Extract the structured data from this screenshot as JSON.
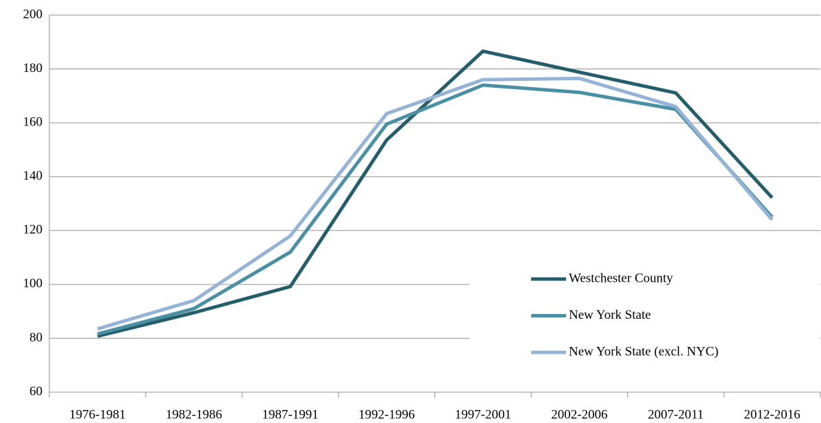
{
  "chart_data": {
    "type": "line",
    "categories": [
      "1976-1981",
      "1982-1986",
      "1987-1991",
      "1992-1996",
      "1997-2001",
      "2002-2006",
      "2007-2011",
      "2012-2016"
    ],
    "series": [
      {
        "name": "Westchester County",
        "color": "#255e6b",
        "values": [
          80.8,
          89.5,
          99.2,
          153.6,
          186.6,
          178.8,
          171.1,
          132.2
        ]
      },
      {
        "name": "New York State",
        "color": "#4a90a4",
        "values": [
          81.6,
          91,
          112,
          159.5,
          174,
          171.3,
          165,
          125
        ]
      },
      {
        "name": "New York State (excl. NYC)",
        "color": "#95b3d7",
        "values": [
          83.5,
          94,
          118,
          163.4,
          176,
          176.5,
          166,
          124
        ]
      }
    ],
    "ylim": [
      60,
      200
    ],
    "yticks": [
      60,
      80,
      100,
      120,
      140,
      160,
      180,
      200
    ],
    "grid": true,
    "legend": "right"
  }
}
